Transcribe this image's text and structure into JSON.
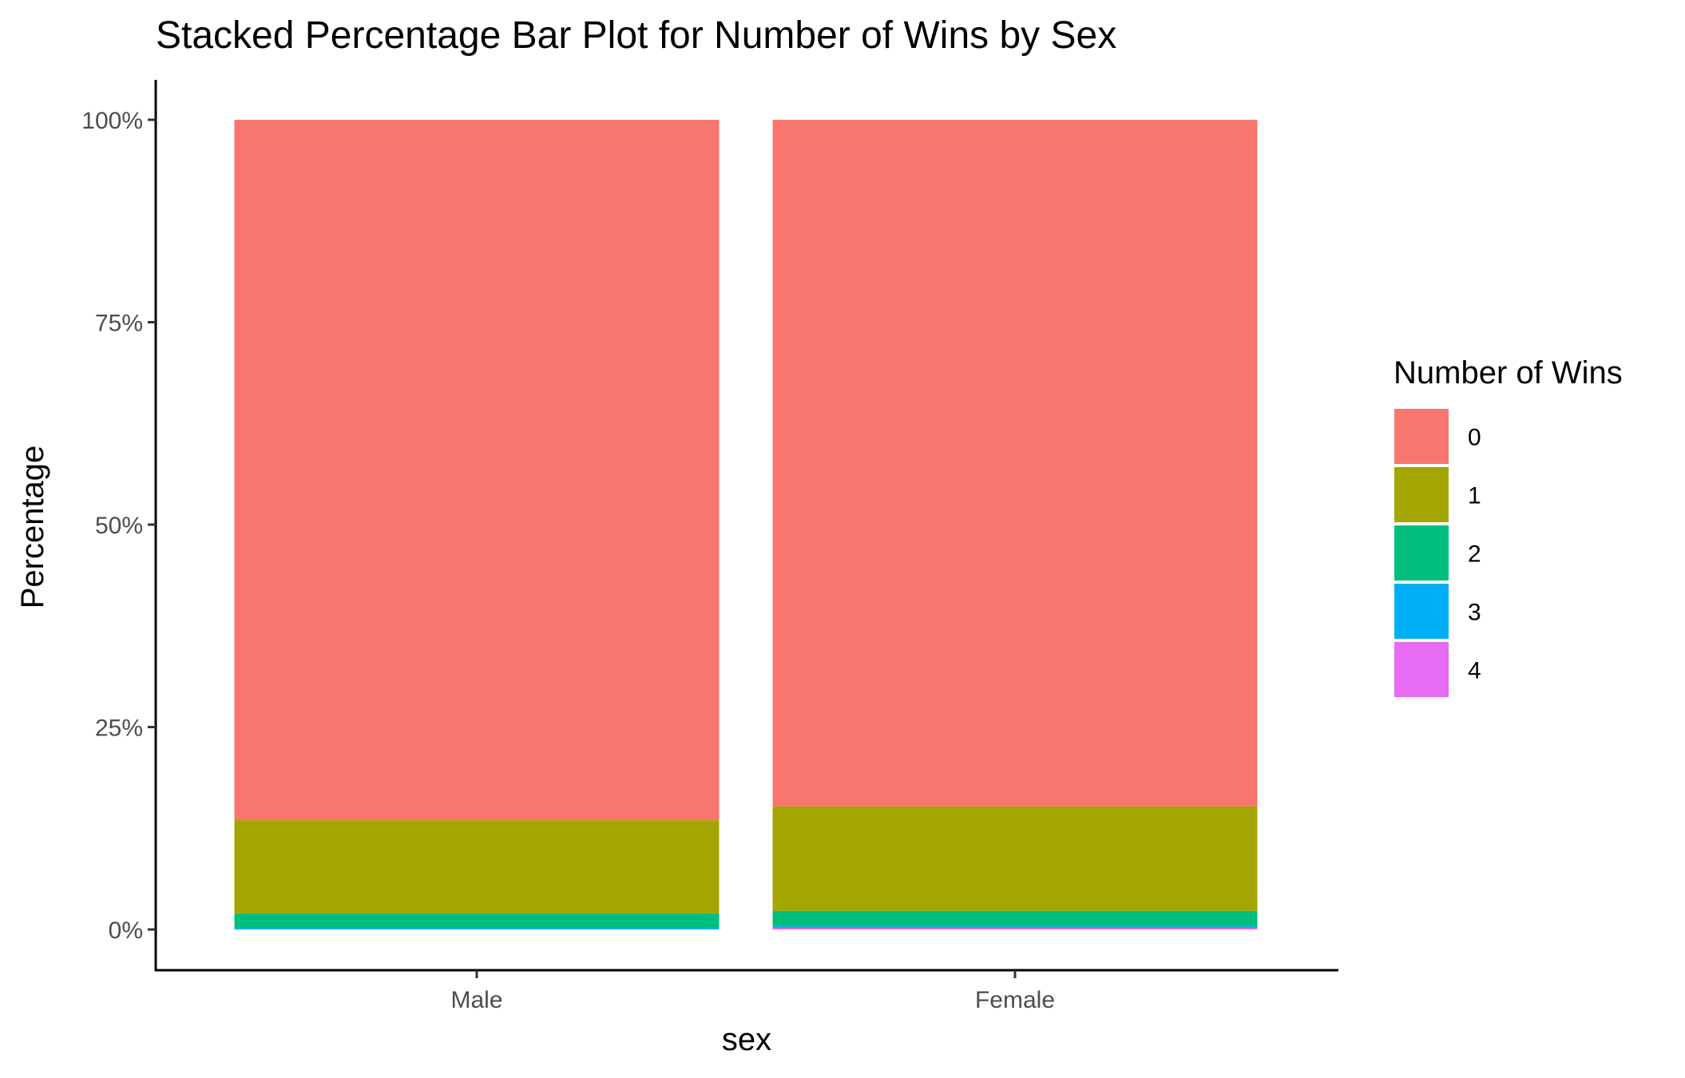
{
  "chart_data": {
    "type": "bar",
    "stacked": "percent",
    "title": "Stacked Percentage Bar Plot for Number of Wins by Sex",
    "xlabel": "sex",
    "ylabel": "Percentage",
    "categories": [
      "Male",
      "Female"
    ],
    "ylim": [
      0,
      100
    ],
    "yticks": [
      0,
      25,
      50,
      75,
      100
    ],
    "ytick_labels": [
      "0%",
      "25%",
      "50%",
      "75%",
      "100%"
    ],
    "legend": {
      "title": "Number of Wins",
      "position": "right"
    },
    "grid": false,
    "series": [
      {
        "name": "0",
        "color": "#F8766D",
        "values": [
          86.5,
          84.8
        ]
      },
      {
        "name": "1",
        "color": "#A3A500",
        "values": [
          11.5,
          12.9
        ]
      },
      {
        "name": "2",
        "color": "#00BF7D",
        "values": [
          1.8,
          1.9
        ]
      },
      {
        "name": "3",
        "color": "#00B0F6",
        "values": [
          0.2,
          0.2
        ]
      },
      {
        "name": "4",
        "color": "#E76BF3",
        "values": [
          0.0,
          0.2
        ]
      }
    ]
  }
}
